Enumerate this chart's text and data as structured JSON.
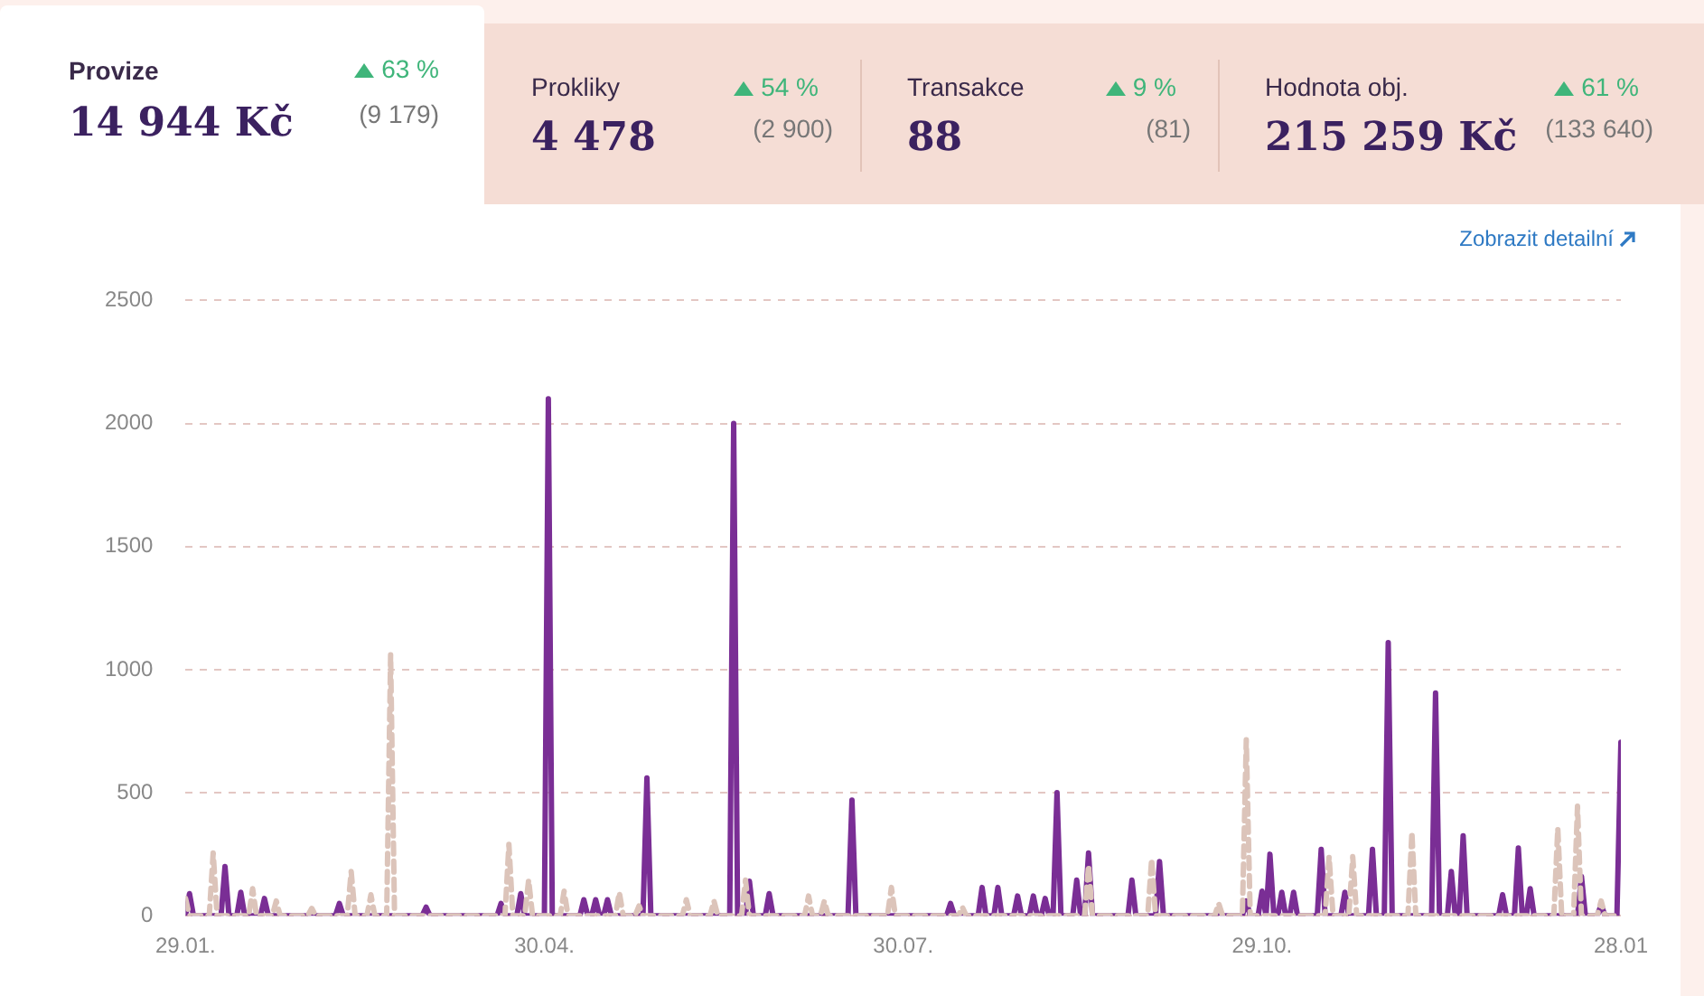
{
  "chart_data": [
    {
      "type": "other",
      "annotations": [
        "Provize",
        "63 %",
        "14 944 Kč",
        "(9 179)",
        "Prokliky",
        "54 %",
        "4 478",
        "(2 900)",
        "Transakce",
        "9 %",
        "88",
        "(81)",
        "Hodnota obj.",
        "61 %",
        "215 259 Kč",
        "(133 640)"
      ]
    },
    {
      "type": "line",
      "annotations": [
        "Zobrazit detailní"
      ],
      "grid": "y",
      "line_style": "solid",
      "marker": "none",
      "legend": false,
      "xlim": [
        "2001-01-29",
        "2002-01-28"
      ],
      "xticks": [
        {
          "value": "2001-01-29",
          "label": "29.01."
        },
        {
          "value": "2001-04-30",
          "label": "30.04."
        },
        {
          "value": "2001-07-30",
          "label": "30.07."
        },
        {
          "value": "2001-10-29",
          "label": "29.10."
        },
        {
          "value": "2002-01-28",
          "label": "28.01"
        }
      ],
      "ylim": [
        0,
        2500
      ],
      "yticks": [
        0,
        500,
        1000,
        1500,
        2000,
        2500
      ],
      "series": [
        {
          "color": "#dcc4ba",
          "line_style": "dashed",
          "x": [
            "2001-01-29",
            "2001-01-30",
            "2001-02-04",
            "2001-02-05",
            "2001-02-06",
            "2001-02-14",
            "2001-02-15",
            "2001-02-16",
            "2001-02-20",
            "2001-02-21",
            "2001-02-22",
            "2001-03-01",
            "2001-03-02",
            "2001-03-03",
            "2001-03-11",
            "2001-03-12",
            "2001-03-13",
            "2001-03-16",
            "2001-03-17",
            "2001-03-18",
            "2001-03-21",
            "2001-03-22",
            "2001-03-23",
            "2001-04-20",
            "2001-04-21",
            "2001-04-22",
            "2001-04-25",
            "2001-04-26",
            "2001-04-27",
            "2001-05-04",
            "2001-05-05",
            "2001-05-06",
            "2001-05-18",
            "2001-05-19",
            "2001-05-20",
            "2001-05-23",
            "2001-05-24",
            "2001-05-25",
            "2001-06-04",
            "2001-06-05",
            "2001-06-06",
            "2001-06-11",
            "2001-06-12",
            "2001-06-13",
            "2001-06-19",
            "2001-06-20",
            "2001-06-21",
            "2001-07-05",
            "2001-07-06",
            "2001-07-07",
            "2001-07-09",
            "2001-07-10",
            "2001-07-11",
            "2001-07-26",
            "2001-07-27",
            "2001-07-28",
            "2001-08-13",
            "2001-08-14",
            "2001-08-15",
            "2001-09-14",
            "2001-09-15",
            "2001-09-16",
            "2001-09-30",
            "2001-10-01",
            "2001-10-02",
            "2001-10-17",
            "2001-10-18",
            "2001-10-19",
            "2001-10-24",
            "2001-10-25",
            "2001-10-26",
            "2001-11-14",
            "2001-11-15",
            "2001-11-16",
            "2001-11-20",
            "2001-11-21",
            "2001-11-22",
            "2001-12-05",
            "2001-12-06",
            "2001-12-07",
            "2002-01-11",
            "2002-01-12",
            "2002-01-13",
            "2002-01-16",
            "2002-01-17",
            "2002-01-18",
            "2002-01-22",
            "2002-01-23",
            "2002-01-24",
            "2002-01-28"
          ],
          "values": [
            70,
            0,
            0,
            255,
            0,
            0,
            110,
            0,
            0,
            60,
            0,
            0,
            30,
            0,
            0,
            180,
            0,
            0,
            85,
            0,
            0,
            1060,
            0,
            0,
            290,
            0,
            0,
            145,
            0,
            0,
            100,
            0,
            0,
            95,
            0,
            0,
            40,
            0,
            0,
            65,
            0,
            0,
            60,
            0,
            0,
            145,
            0,
            0,
            80,
            0,
            0,
            60,
            0,
            0,
            115,
            0,
            0,
            35,
            0,
            0,
            205,
            0,
            0,
            230,
            0,
            0,
            50,
            0,
            0,
            715,
            0,
            0,
            240,
            0,
            0,
            240,
            0,
            0,
            340,
            0,
            0,
            355,
            0,
            0,
            445,
            0,
            0,
            60,
            0,
            0
          ]
        },
        {
          "color": "#7a2e95",
          "x": [
            "2001-01-29",
            "2001-01-30",
            "2001-01-31",
            "2001-02-07",
            "2001-02-08",
            "2001-02-09",
            "2001-02-11",
            "2001-02-12",
            "2001-02-13",
            "2001-02-17",
            "2001-02-18",
            "2001-02-19",
            "2001-03-08",
            "2001-03-09",
            "2001-03-10",
            "2001-03-30",
            "2001-03-31",
            "2001-04-01",
            "2001-04-18",
            "2001-04-19",
            "2001-04-20",
            "2001-04-23",
            "2001-04-24",
            "2001-04-25",
            "2001-04-30",
            "2001-05-01",
            "2001-05-02",
            "2001-05-09",
            "2001-05-10",
            "2001-05-11",
            "2001-05-12",
            "2001-05-13",
            "2001-05-14",
            "2001-05-15",
            "2001-05-16",
            "2001-05-17",
            "2001-05-25",
            "2001-05-26",
            "2001-05-27",
            "2001-06-16",
            "2001-06-17",
            "2001-06-18",
            "2001-06-20",
            "2001-06-21",
            "2001-06-22",
            "2001-06-25",
            "2001-06-26",
            "2001-06-27",
            "2001-07-16",
            "2001-07-17",
            "2001-07-18",
            "2001-08-10",
            "2001-08-11",
            "2001-08-12",
            "2001-08-18",
            "2001-08-19",
            "2001-08-20",
            "2001-08-22",
            "2001-08-23",
            "2001-08-24",
            "2001-08-27",
            "2001-08-28",
            "2001-08-29",
            "2001-08-31",
            "2001-09-01",
            "2001-09-02",
            "2001-09-03",
            "2001-09-04",
            "2001-09-05",
            "2001-09-06",
            "2001-09-07",
            "2001-09-08",
            "2001-09-11",
            "2001-09-12",
            "2001-09-13",
            "2001-09-14",
            "2001-09-15",
            "2001-09-16",
            "2001-09-25",
            "2001-09-26",
            "2001-09-27",
            "2001-10-02",
            "2001-10-03",
            "2001-10-04",
            "2001-10-24",
            "2001-10-25",
            "2001-10-26",
            "2001-10-28",
            "2001-10-29",
            "2001-10-30",
            "2001-10-31",
            "2001-11-01",
            "2001-11-02",
            "2001-11-03",
            "2001-11-04",
            "2001-11-05",
            "2001-11-06",
            "2001-11-07",
            "2001-11-12",
            "2001-11-13",
            "2001-11-14",
            "2001-11-18",
            "2001-11-19",
            "2001-11-20",
            "2001-11-25",
            "2001-11-26",
            "2001-11-27",
            "2001-11-29",
            "2001-11-30",
            "2001-12-01",
            "2001-12-11",
            "2001-12-12",
            "2001-12-13",
            "2001-12-15",
            "2001-12-16",
            "2001-12-17",
            "2001-12-18",
            "2001-12-19",
            "2001-12-20",
            "2001-12-28",
            "2001-12-29",
            "2001-12-30",
            "2002-01-01",
            "2002-01-02",
            "2002-01-03",
            "2002-01-04",
            "2002-01-05",
            "2002-01-06",
            "2002-01-17",
            "2002-01-18",
            "2002-01-19",
            "2002-01-22",
            "2002-01-23",
            "2002-01-24",
            "2002-01-27",
            "2002-01-28"
          ],
          "values": [
            0,
            90,
            0,
            0,
            200,
            0,
            0,
            95,
            0,
            0,
            70,
            0,
            0,
            50,
            0,
            0,
            35,
            0,
            0,
            50,
            0,
            0,
            90,
            0,
            0,
            2100,
            0,
            0,
            65,
            0,
            0,
            65,
            0,
            0,
            65,
            0,
            0,
            560,
            0,
            0,
            2000,
            0,
            0,
            140,
            0,
            0,
            90,
            0,
            0,
            470,
            0,
            0,
            50,
            0,
            0,
            115,
            0,
            0,
            115,
            0,
            0,
            80,
            0,
            0,
            80,
            0,
            0,
            70,
            0,
            0,
            500,
            0,
            0,
            145,
            0,
            0,
            255,
            0,
            0,
            145,
            0,
            0,
            220,
            0,
            0,
            60,
            0,
            0,
            100,
            0,
            250,
            0,
            0,
            95,
            0,
            0,
            95,
            0,
            0,
            270,
            0,
            0,
            95,
            0,
            0,
            270,
            0,
            0,
            1110,
            0,
            0,
            905,
            0,
            0,
            180,
            0,
            0,
            325,
            0,
            0,
            85,
            0,
            0,
            275,
            0,
            0,
            110,
            0,
            0,
            160,
            0,
            0,
            45,
            0,
            0,
            705
          ]
        }
      ]
    }
  ]
}
